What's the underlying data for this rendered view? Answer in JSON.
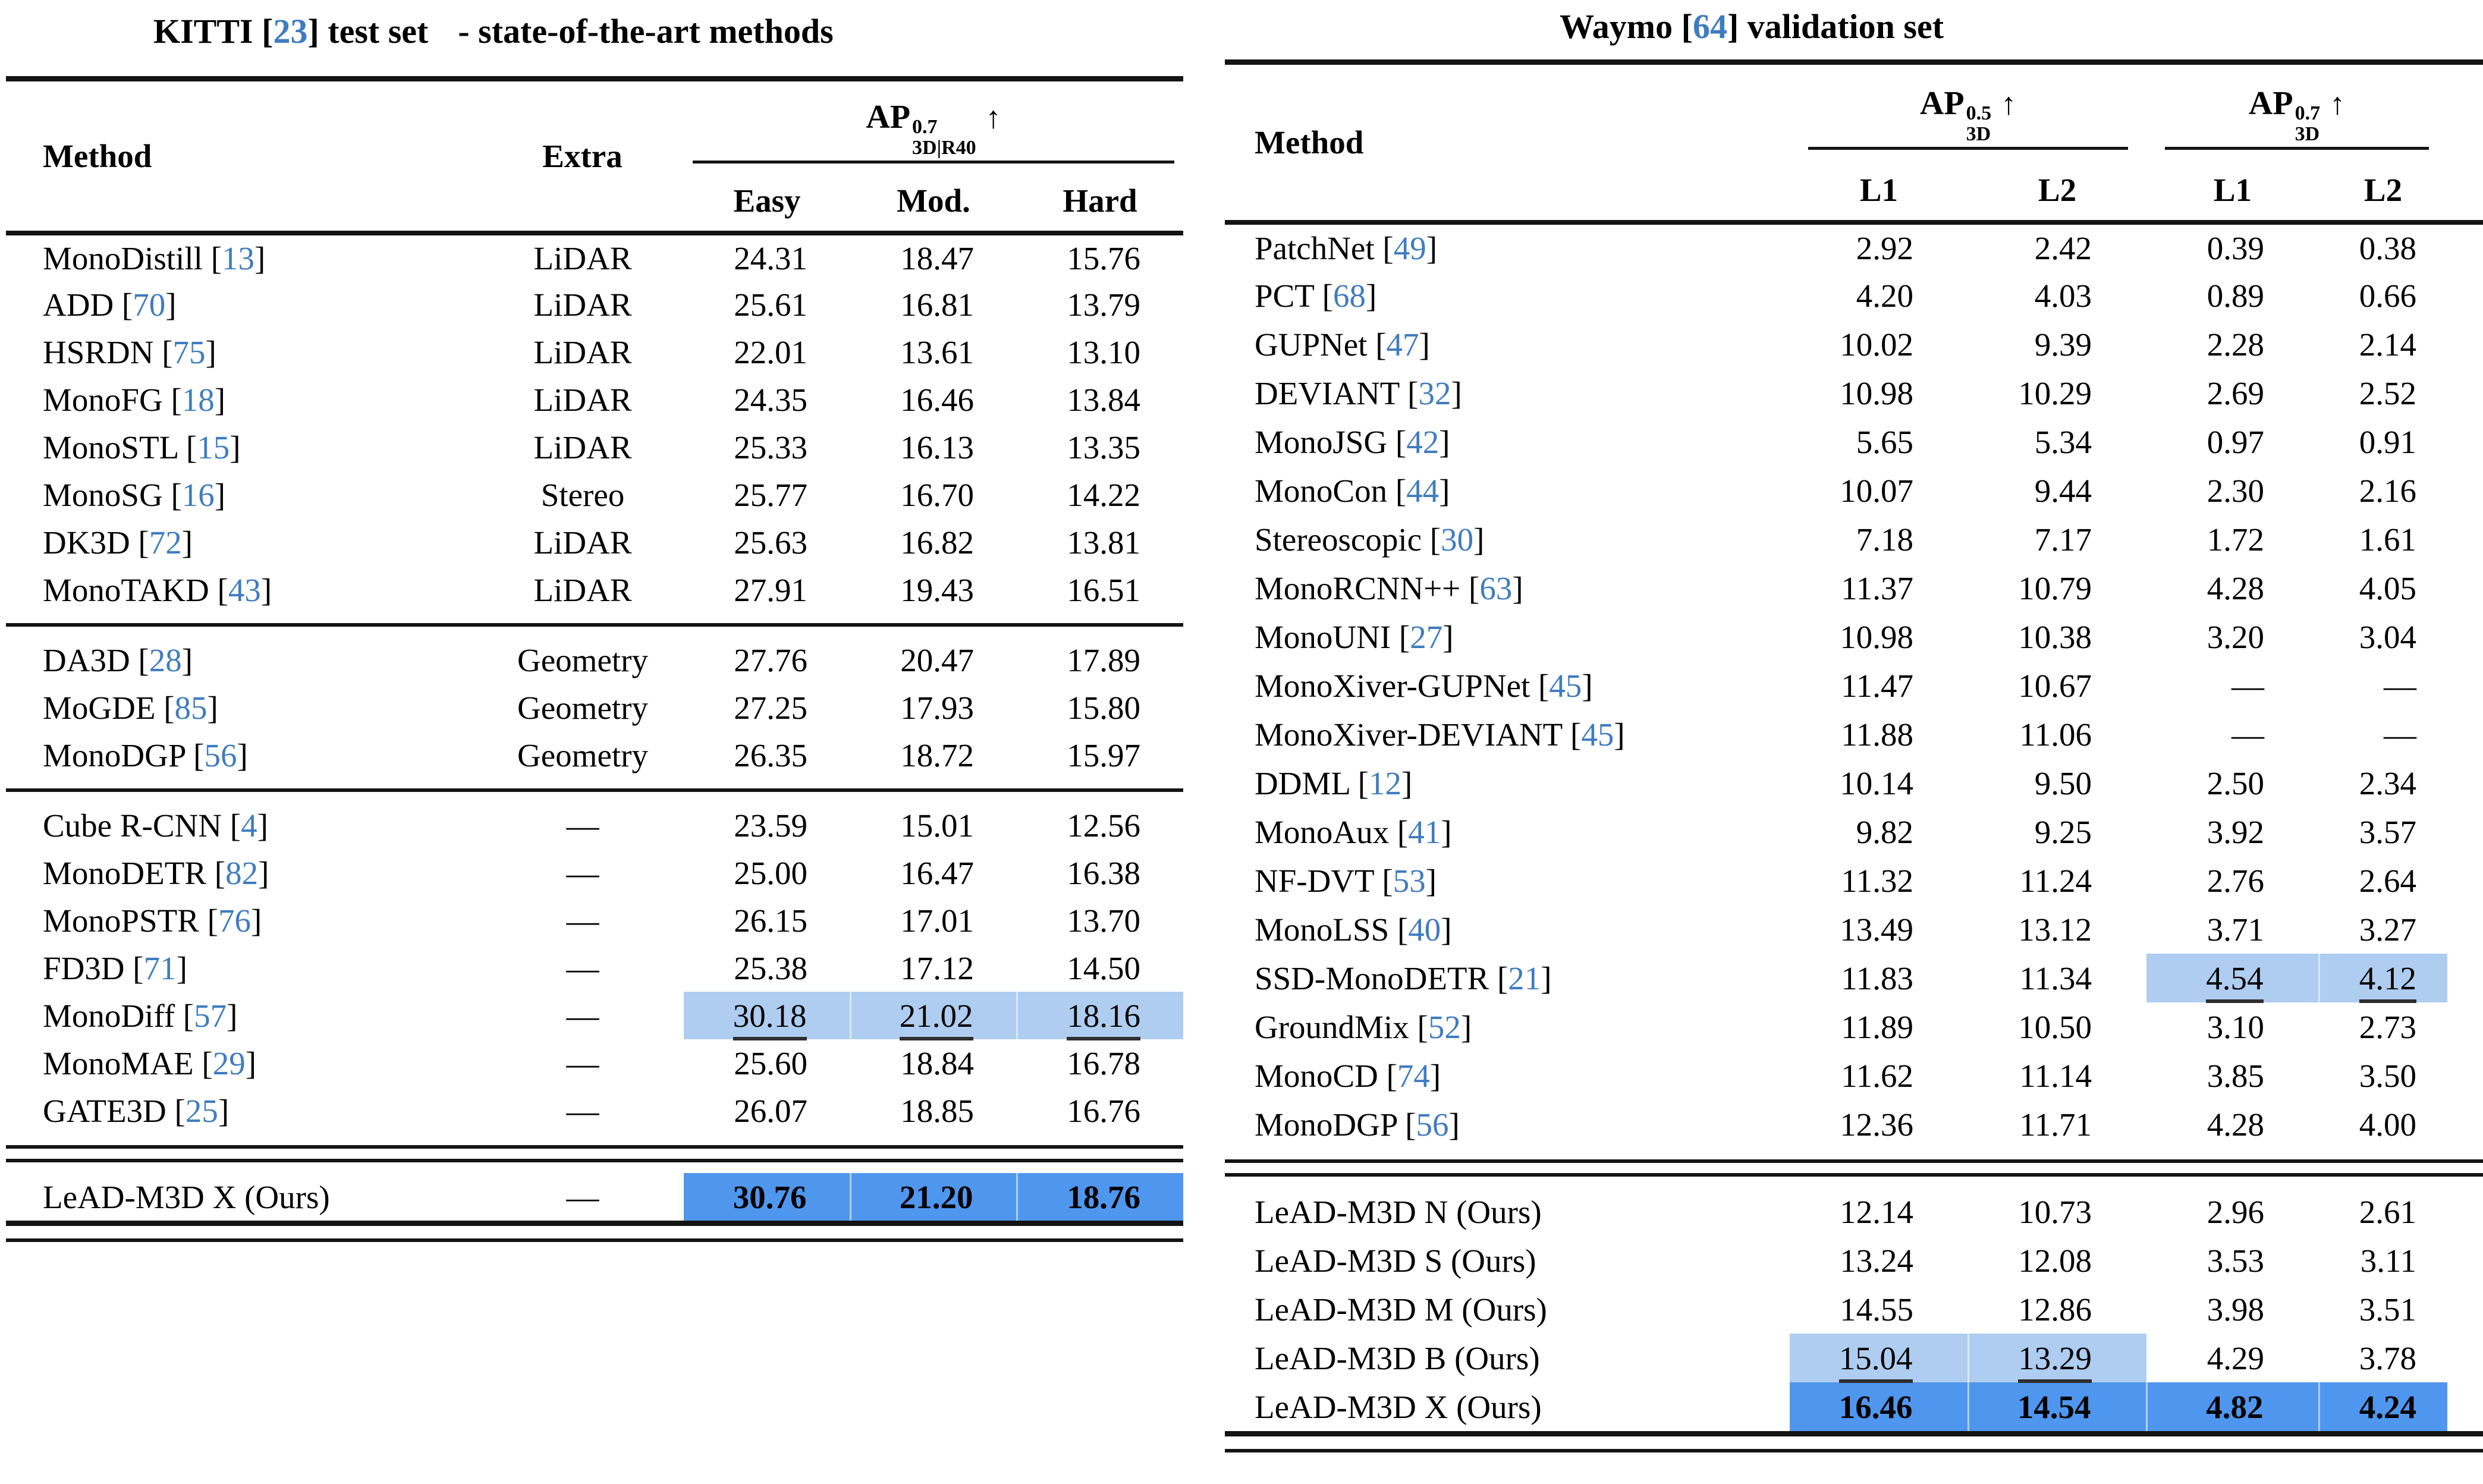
{
  "colors": {
    "best_highlight": "#4f96ee",
    "second_highlight": "#aecdf0",
    "citation_blue": "#3f7cc0",
    "rule_color": "#141414"
  },
  "kitti": {
    "title": {
      "pre": "KITTI [",
      "ref": "23",
      "post": "] test set"
    },
    "subtitle": "- state-of-the-art methods",
    "header": {
      "method": "Method",
      "extra": "Extra",
      "ap": {
        "base": "AP",
        "sup": "0.7",
        "sub": "3D|R40",
        "arrow": "↑"
      },
      "subcols": [
        "Easy",
        "Mod.",
        "Hard"
      ]
    },
    "sections": [
      {
        "rule_before": "none",
        "rows": [
          {
            "name": "MonoDistill",
            "ref": "13",
            "extra": "LiDAR",
            "vals": [
              "24.31",
              "18.47",
              "15.76"
            ]
          },
          {
            "name": "ADD",
            "ref": "70",
            "extra": "LiDAR",
            "vals": [
              "25.61",
              "16.81",
              "13.79"
            ]
          },
          {
            "name": "HSRDN",
            "ref": "75",
            "extra": "LiDAR",
            "vals": [
              "22.01",
              "13.61",
              "13.10"
            ]
          },
          {
            "name": "MonoFG",
            "ref": "18",
            "extra": "LiDAR",
            "vals": [
              "24.35",
              "16.46",
              "13.84"
            ]
          },
          {
            "name": "MonoSTL",
            "ref": "15",
            "extra": "LiDAR",
            "vals": [
              "25.33",
              "16.13",
              "13.35"
            ]
          },
          {
            "name": "MonoSG",
            "ref": "16",
            "extra": "Stereo",
            "vals": [
              "25.77",
              "16.70",
              "14.22"
            ]
          },
          {
            "name": "DK3D",
            "ref": "72",
            "extra": "LiDAR",
            "vals": [
              "25.63",
              "16.82",
              "13.81"
            ]
          },
          {
            "name": "MonoTAKD",
            "ref": "43",
            "extra": "LiDAR",
            "vals": [
              "27.91",
              "19.43",
              "16.51"
            ]
          }
        ]
      },
      {
        "rule_before": "single",
        "rows": [
          {
            "name": "DA3D",
            "ref": "28",
            "extra": "Geometry",
            "vals": [
              "27.76",
              "20.47",
              "17.89"
            ]
          },
          {
            "name": "MoGDE",
            "ref": "85",
            "extra": "Geometry",
            "vals": [
              "27.25",
              "17.93",
              "15.80"
            ]
          },
          {
            "name": "MonoDGP",
            "ref": "56",
            "extra": "Geometry",
            "vals": [
              "26.35",
              "18.72",
              "15.97"
            ]
          }
        ]
      },
      {
        "rule_before": "single",
        "rows": [
          {
            "name": "Cube R-CNN",
            "ref": "4",
            "extra": "—",
            "vals": [
              "23.59",
              "15.01",
              "12.56"
            ]
          },
          {
            "name": "MonoDETR",
            "ref": "82",
            "extra": "—",
            "vals": [
              "25.00",
              "16.47",
              "16.38"
            ]
          },
          {
            "name": "MonoPSTR",
            "ref": "76",
            "extra": "—",
            "vals": [
              "26.15",
              "17.01",
              "13.70"
            ]
          },
          {
            "name": "FD3D",
            "ref": "71",
            "extra": "—",
            "vals": [
              "25.38",
              "17.12",
              "14.50"
            ]
          },
          {
            "name": "MonoDiff",
            "ref": "57",
            "extra": "—",
            "vals": [
              "30.18",
              "21.02",
              "18.16"
            ],
            "hl": {
              "type": "second",
              "cols": [
                0,
                1,
                2
              ],
              "underline": true
            }
          },
          {
            "name": "MonoMAE",
            "ref": "29",
            "extra": "—",
            "vals": [
              "25.60",
              "18.84",
              "16.78"
            ]
          },
          {
            "name": "GATE3D",
            "ref": "25",
            "extra": "—",
            "vals": [
              "26.07",
              "18.85",
              "16.76"
            ]
          }
        ]
      },
      {
        "rule_before": "double",
        "rows": [
          {
            "name": "LeAD-M3D X (Ours)",
            "ref": null,
            "extra": "—",
            "vals": [
              "30.76",
              "21.20",
              "18.76"
            ],
            "hl": {
              "type": "best",
              "cols": [
                0,
                1,
                2
              ],
              "bold": true
            }
          }
        ]
      }
    ]
  },
  "waymo": {
    "title": {
      "pre": "Waymo [",
      "ref": "64",
      "post": "] validation set"
    },
    "header": {
      "method": "Method",
      "groups": [
        {
          "base": "AP",
          "sup": "0.5",
          "sub": "3D",
          "arrow": "↑",
          "subcols": [
            "L1",
            "L2"
          ]
        },
        {
          "base": "AP",
          "sup": "0.7",
          "sub": "3D",
          "arrow": "↑",
          "subcols": [
            "L1",
            "L2"
          ]
        }
      ]
    },
    "sections": [
      {
        "rule_before": "none",
        "rows": [
          {
            "name": "PatchNet",
            "ref": "49",
            "vals": [
              "2.92",
              "2.42",
              "0.39",
              "0.38"
            ]
          },
          {
            "name": "PCT",
            "ref": "68",
            "vals": [
              "4.20",
              "4.03",
              "0.89",
              "0.66"
            ]
          },
          {
            "name": "GUPNet",
            "ref": "47",
            "vals": [
              "10.02",
              "9.39",
              "2.28",
              "2.14"
            ]
          },
          {
            "name": "DEVIANT",
            "ref": "32",
            "vals": [
              "10.98",
              "10.29",
              "2.69",
              "2.52"
            ]
          },
          {
            "name": "MonoJSG",
            "ref": "42",
            "vals": [
              "5.65",
              "5.34",
              "0.97",
              "0.91"
            ]
          },
          {
            "name": "MonoCon",
            "ref": "44",
            "vals": [
              "10.07",
              "9.44",
              "2.30",
              "2.16"
            ]
          },
          {
            "name": "Stereoscopic",
            "ref": "30",
            "vals": [
              "7.18",
              "7.17",
              "1.72",
              "1.61"
            ]
          },
          {
            "name": "MonoRCNN++",
            "ref": "63",
            "vals": [
              "11.37",
              "10.79",
              "4.28",
              "4.05"
            ]
          },
          {
            "name": "MonoUNI",
            "ref": "27",
            "vals": [
              "10.98",
              "10.38",
              "3.20",
              "3.04"
            ]
          },
          {
            "name": "MonoXiver-GUPNet",
            "ref": "45",
            "vals": [
              "11.47",
              "10.67",
              "—",
              "—"
            ]
          },
          {
            "name": "MonoXiver-DEVIANT",
            "ref": "45",
            "vals": [
              "11.88",
              "11.06",
              "—",
              "—"
            ]
          },
          {
            "name": "DDML",
            "ref": "12",
            "vals": [
              "10.14",
              "9.50",
              "2.50",
              "2.34"
            ]
          },
          {
            "name": "MonoAux",
            "ref": "41",
            "vals": [
              "9.82",
              "9.25",
              "3.92",
              "3.57"
            ]
          },
          {
            "name": "NF-DVT",
            "ref": "53",
            "vals": [
              "11.32",
              "11.24",
              "2.76",
              "2.64"
            ]
          },
          {
            "name": "MonoLSS",
            "ref": "40",
            "vals": [
              "13.49",
              "13.12",
              "3.71",
              "3.27"
            ]
          },
          {
            "name": "SSD-MonoDETR",
            "ref": "21",
            "vals": [
              "11.83",
              "11.34",
              "4.54",
              "4.12"
            ],
            "hl": {
              "type": "second",
              "cols": [
                2,
                3
              ],
              "underline": true
            }
          },
          {
            "name": "GroundMix",
            "ref": "52",
            "vals": [
              "11.89",
              "10.50",
              "3.10",
              "2.73"
            ]
          },
          {
            "name": "MonoCD",
            "ref": "74",
            "vals": [
              "11.62",
              "11.14",
              "3.85",
              "3.50"
            ]
          },
          {
            "name": "MonoDGP",
            "ref": "56",
            "vals": [
              "12.36",
              "11.71",
              "4.28",
              "4.00"
            ]
          }
        ]
      },
      {
        "rule_before": "double",
        "rows": [
          {
            "name": "LeAD-M3D N (Ours)",
            "ref": null,
            "vals": [
              "12.14",
              "10.73",
              "2.96",
              "2.61"
            ]
          },
          {
            "name": "LeAD-M3D S (Ours)",
            "ref": null,
            "vals": [
              "13.24",
              "12.08",
              "3.53",
              "3.11"
            ]
          },
          {
            "name": "LeAD-M3D M (Ours)",
            "ref": null,
            "vals": [
              "14.55",
              "12.86",
              "3.98",
              "3.51"
            ]
          },
          {
            "name": "LeAD-M3D B (Ours)",
            "ref": null,
            "vals": [
              "15.04",
              "13.29",
              "4.29",
              "3.78"
            ],
            "hl": {
              "type": "second",
              "cols": [
                0,
                1
              ],
              "underline": true
            }
          },
          {
            "name": "LeAD-M3D X (Ours)",
            "ref": null,
            "vals": [
              "16.46",
              "14.54",
              "4.82",
              "4.24"
            ],
            "hl": {
              "type": "best",
              "cols": [
                0,
                1,
                2,
                3
              ],
              "bold": true
            }
          }
        ]
      }
    ]
  }
}
